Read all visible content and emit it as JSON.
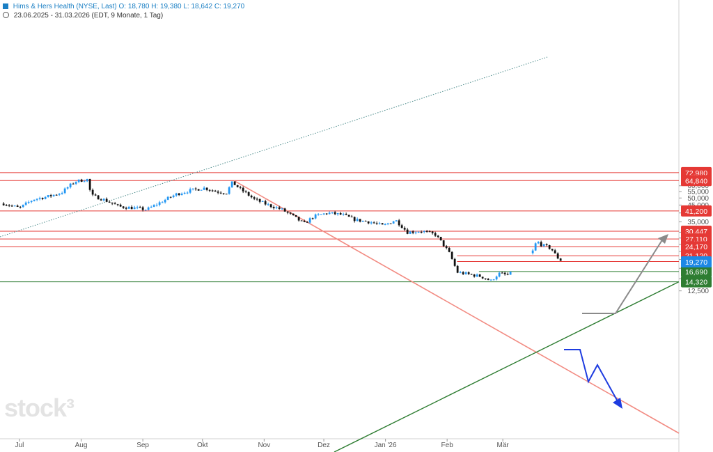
{
  "header": {
    "title": "Hims & Hers Health (NYSE, Last)",
    "ohlc": "O: 18,780  H: 19,380  L: 18,642  C: 19,270",
    "range": "23.06.2025 - 31.03.2026",
    "meta": "(EDT, 9 Monate, 1 Tag)"
  },
  "watermark": "stock³",
  "colors": {
    "up": "#2196f3",
    "down": "#111111",
    "resistance": "#e53935",
    "support": "#2e7d32",
    "trendline": "#f28b82",
    "arrow_up": "#8a8a8a",
    "arrow_down": "#1e3ce0",
    "last_price": "#1e88e5"
  },
  "chart_data": {
    "type": "candlestick",
    "scale": "log",
    "ylim": [
      12.0,
      75.0
    ],
    "y_ticks": [
      "12,500",
      "15,000",
      "17,500",
      "20,000",
      "22,500",
      "25,000",
      "27,500",
      "30,000",
      "35,000",
      "40,000",
      "45,000",
      "50,000",
      "55,000",
      "60,000"
    ],
    "x_ticks": [
      "Jul",
      "Aug",
      "Sep",
      "Okt",
      "Nov",
      "Dez",
      "Jan '26",
      "Feb",
      "Mär"
    ],
    "resistance_levels": [
      {
        "label": "72,980",
        "value": 72.98
      },
      {
        "label": "64,840",
        "value": 64.84
      },
      {
        "label": "41,200",
        "value": 41.2
      },
      {
        "label": "30,447",
        "value": 30.447
      },
      {
        "label": "27,110",
        "value": 27.11
      },
      {
        "label": "24,170",
        "value": 24.17
      },
      {
        "label": "21,120",
        "value": 21.12
      }
    ],
    "support_levels": [
      {
        "label": "16,690",
        "value": 16.69
      },
      {
        "label": "14,320",
        "value": 14.32
      }
    ],
    "last_price": {
      "label": "19,270",
      "value": 19.27
    },
    "price_path": [
      {
        "date": "2025-06-23",
        "close": 46
      },
      {
        "date": "2025-07-01",
        "close": 43
      },
      {
        "date": "2025-07-08",
        "close": 49
      },
      {
        "date": "2025-07-15",
        "close": 51
      },
      {
        "date": "2025-07-22",
        "close": 54
      },
      {
        "date": "2025-07-29",
        "close": 64
      },
      {
        "date": "2025-08-04",
        "close": 66
      },
      {
        "date": "2025-08-06",
        "close": 52
      },
      {
        "date": "2025-08-12",
        "close": 49
      },
      {
        "date": "2025-08-20",
        "close": 44
      },
      {
        "date": "2025-08-28",
        "close": 43
      },
      {
        "date": "2025-09-03",
        "close": 42
      },
      {
        "date": "2025-09-10",
        "close": 47
      },
      {
        "date": "2025-09-18",
        "close": 53
      },
      {
        "date": "2025-09-25",
        "close": 56
      },
      {
        "date": "2025-10-02",
        "close": 58
      },
      {
        "date": "2025-10-08",
        "close": 55
      },
      {
        "date": "2025-10-13",
        "close": 54
      },
      {
        "date": "2025-10-16",
        "close": 63
      },
      {
        "date": "2025-10-20",
        "close": 57
      },
      {
        "date": "2025-10-27",
        "close": 49
      },
      {
        "date": "2025-11-03",
        "close": 45
      },
      {
        "date": "2025-11-10",
        "close": 42
      },
      {
        "date": "2025-11-17",
        "close": 37
      },
      {
        "date": "2025-11-21",
        "close": 34
      },
      {
        "date": "2025-11-26",
        "close": 38
      },
      {
        "date": "2025-12-03",
        "close": 40
      },
      {
        "date": "2025-12-10",
        "close": 39
      },
      {
        "date": "2025-12-17",
        "close": 36
      },
      {
        "date": "2025-12-24",
        "close": 35
      },
      {
        "date": "2025-12-31",
        "close": 33
      },
      {
        "date": "2026-01-06",
        "close": 36
      },
      {
        "date": "2026-01-12",
        "close": 30
      },
      {
        "date": "2026-01-19",
        "close": 30.5
      },
      {
        "date": "2026-01-26",
        "close": 29
      },
      {
        "date": "2026-01-30",
        "close": 25
      },
      {
        "date": "2026-02-02",
        "close": 22
      },
      {
        "date": "2026-02-04",
        "close": 19.3
      },
      {
        "date": "2026-02-06",
        "close": 16.5
      },
      {
        "date": "2026-02-12",
        "close": 16.0
      },
      {
        "date": "2026-02-18",
        "close": 15.5
      },
      {
        "date": "2026-02-23",
        "close": 14.5
      },
      {
        "date": "2026-02-27",
        "close": 16.2
      },
      {
        "date": "2026-03-04",
        "close": 15.8
      }
    ],
    "recent_rally": [
      {
        "date": "2026-03-16",
        "close": 22.5
      },
      {
        "date": "2026-03-18",
        "close": 26.2
      },
      {
        "date": "2026-03-21",
        "close": 24.6
      },
      {
        "date": "2026-03-24",
        "close": 24.0
      },
      {
        "date": "2026-03-26",
        "close": 22.9
      },
      {
        "date": "2026-03-28",
        "close": 20.8
      },
      {
        "date": "2026-03-31",
        "close": 19.27
      }
    ]
  }
}
